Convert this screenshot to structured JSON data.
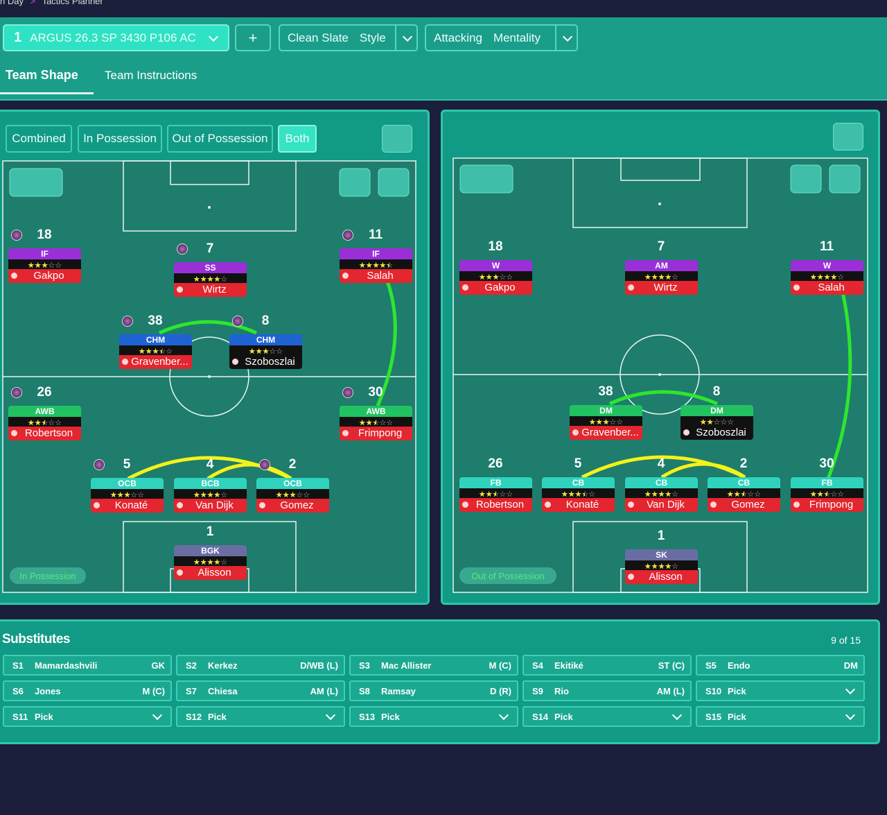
{
  "breadcrumb": [
    "n Day",
    "Tactics Planner"
  ],
  "toolbar": {
    "tactic_number": "1",
    "tactic_name": "ARGUS 26.3 SP 3430 P106 AC",
    "add": "+",
    "style": [
      "Clean Slate",
      "Style"
    ],
    "mentality": [
      "Attacking",
      "Mentality"
    ]
  },
  "tabs": [
    "Team Shape",
    "Team Instructions"
  ],
  "left_pitch": {
    "view_tabs": [
      "Combined",
      "In Possession",
      "Out of Possession",
      "Both"
    ],
    "label": "In Possession",
    "players": [
      {
        "number": 18,
        "role": "IF",
        "stars": 3,
        "name": "Gakpo"
      },
      {
        "number": 7,
        "role": "SS",
        "stars": 4,
        "name": "Wirtz"
      },
      {
        "number": 11,
        "role": "IF",
        "stars": 4.5,
        "name": "Salah"
      },
      {
        "number": 38,
        "role": "CHM",
        "stars": 3.5,
        "name": "Gravenber..."
      },
      {
        "number": 8,
        "role": "CHM",
        "stars": 3,
        "name": "Szoboszlai"
      },
      {
        "number": 26,
        "role": "AWB",
        "stars": 2.5,
        "name": "Robertson"
      },
      {
        "number": 30,
        "role": "AWB",
        "stars": 2.5,
        "name": "Frimpong"
      },
      {
        "number": 5,
        "role": "OCB",
        "stars": 3,
        "name": "Konaté"
      },
      {
        "number": 4,
        "role": "BCB",
        "stars": 4,
        "name": "Van Dijk"
      },
      {
        "number": 2,
        "role": "OCB",
        "stars": 3,
        "name": "Gomez"
      },
      {
        "number": 1,
        "role": "BGK",
        "stars": 4,
        "name": "Alisson"
      }
    ]
  },
  "right_pitch": {
    "label": "Out of Possession",
    "players": [
      {
        "number": 18,
        "role": "W",
        "stars": 3,
        "name": "Gakpo"
      },
      {
        "number": 7,
        "role": "AM",
        "stars": 4,
        "name": "Wirtz"
      },
      {
        "number": 11,
        "role": "W",
        "stars": 4,
        "name": "Salah"
      },
      {
        "number": 38,
        "role": "DM",
        "stars": 3,
        "name": "Gravenber..."
      },
      {
        "number": 8,
        "role": "DM",
        "stars": 2,
        "name": "Szoboszlai"
      },
      {
        "number": 26,
        "role": "FB",
        "stars": 2.5,
        "name": "Robertson"
      },
      {
        "number": 5,
        "role": "CB",
        "stars": 3.5,
        "name": "Konaté"
      },
      {
        "number": 4,
        "role": "CB",
        "stars": 4,
        "name": "Van Dijk"
      },
      {
        "number": 2,
        "role": "CB",
        "stars": 2.5,
        "name": "Gomez"
      },
      {
        "number": 30,
        "role": "FB",
        "stars": 2.5,
        "name": "Frimpong"
      },
      {
        "number": 1,
        "role": "SK",
        "stars": 4,
        "name": "Alisson"
      }
    ]
  },
  "substitutes": {
    "title": "Substitutes",
    "count": "9 of 15",
    "slots": [
      {
        "slot": "S1",
        "name": "Mamardashvili",
        "position": "GK"
      },
      {
        "slot": "S2",
        "name": "Kerkez",
        "position": "D/WB (L)"
      },
      {
        "slot": "S3",
        "name": "Mac Allister",
        "position": "M (C)"
      },
      {
        "slot": "S4",
        "name": "Ekitiké",
        "position": "ST (C)"
      },
      {
        "slot": "S5",
        "name": "Endo",
        "position": "DM"
      },
      {
        "slot": "S6",
        "name": "Jones",
        "position": "M (C)"
      },
      {
        "slot": "S7",
        "name": "Chiesa",
        "position": "AM (L)"
      },
      {
        "slot": "S8",
        "name": "Ramsay",
        "position": "D (R)"
      },
      {
        "slot": "S9",
        "name": "Rio",
        "position": "AM (L)"
      },
      {
        "slot": "S10",
        "name": "Pick"
      },
      {
        "slot": "S11",
        "name": "Pick"
      },
      {
        "slot": "S12",
        "name": "Pick"
      },
      {
        "slot": "S13",
        "name": "Pick"
      },
      {
        "slot": "S14",
        "name": "Pick"
      },
      {
        "slot": "S15",
        "name": "Pick"
      }
    ]
  }
}
